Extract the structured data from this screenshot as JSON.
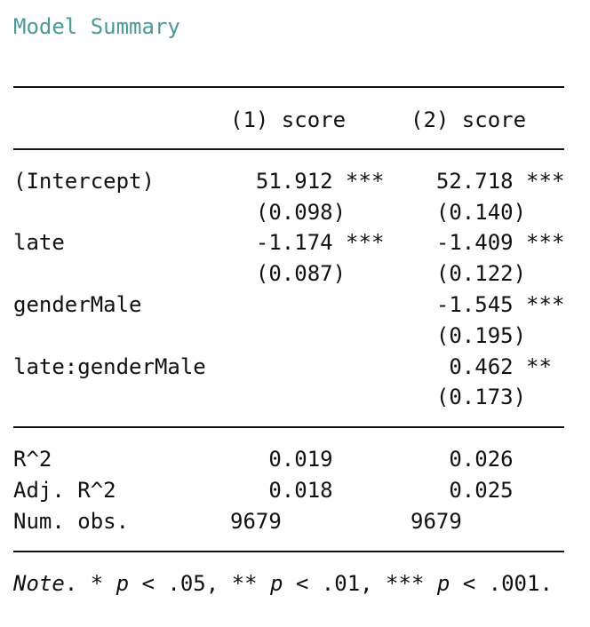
{
  "title": "Model Summary",
  "header": {
    "col1": "(1) score",
    "col2": "(2) score"
  },
  "coefficients": [
    {
      "label": "(Intercept)",
      "col1": "  51.912 ***",
      "col2": "  52.718 ***"
    },
    {
      "label": "",
      "col1": "  (0.098)",
      "col2": "  (0.140)"
    },
    {
      "label": "late",
      "col1": "  -1.174 ***",
      "col2": "  -1.409 ***"
    },
    {
      "label": "",
      "col1": "  (0.087)",
      "col2": "  (0.122)"
    },
    {
      "label": "genderMale",
      "col1": "",
      "col2": "  -1.545 ***"
    },
    {
      "label": "",
      "col1": "",
      "col2": "  (0.195)"
    },
    {
      "label": "late:genderMale",
      "col1": "",
      "col2": "   0.462 **"
    },
    {
      "label": "",
      "col1": "",
      "col2": "  (0.173)"
    }
  ],
  "stats": [
    {
      "label": "R^2",
      "col1": "   0.019",
      "col2": "   0.026"
    },
    {
      "label": "Adj. R^2",
      "col1": "   0.018",
      "col2": "   0.025"
    },
    {
      "label": "Num. obs.",
      "col1": "9679",
      "col2": "9679"
    }
  ],
  "note": {
    "prefix": "Note",
    "p1": "p",
    "p2": "p",
    "p3": "p",
    "t1": ". * ",
    "t2": " < .05, ** ",
    "t3": " < .01, *** ",
    "t4": " < .001."
  }
}
